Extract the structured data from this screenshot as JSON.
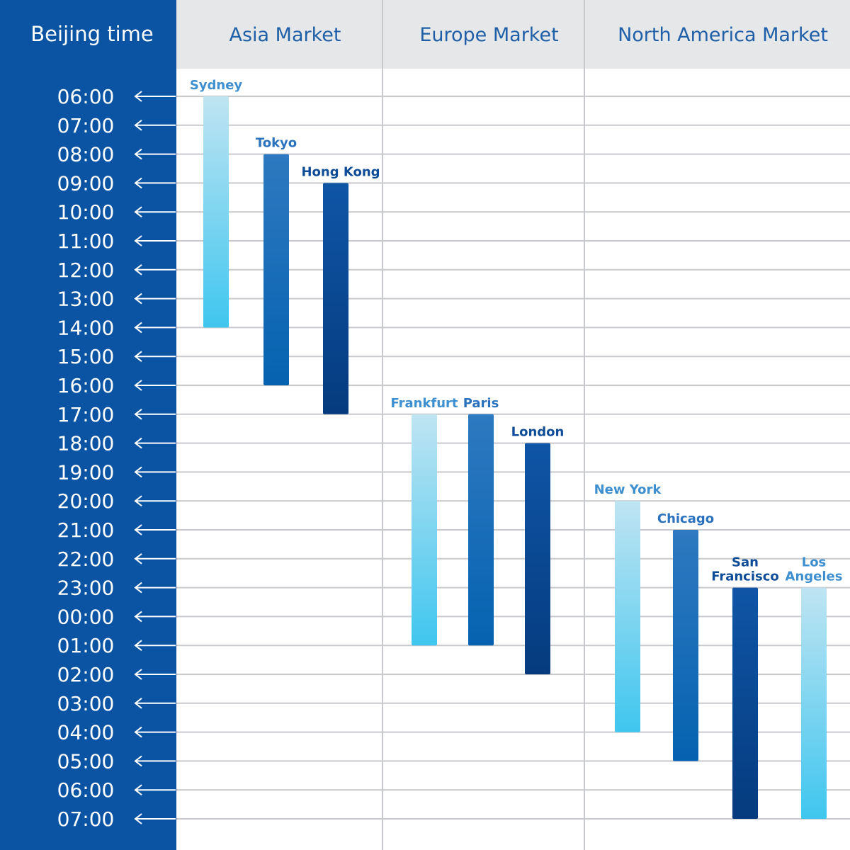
{
  "chart_data": {
    "type": "bar",
    "subtype": "floating-range",
    "axis_title": "Beijing time",
    "markets": [
      {
        "name": "Asia Market",
        "color": "#1e5fa8"
      },
      {
        "name": "Europe Market",
        "color": "#1e5fa8"
      },
      {
        "name": "North America Market",
        "color": "#1e5fa8"
      }
    ],
    "y_ticks": [
      "06:00",
      "07:00",
      "08:00",
      "09:00",
      "10:00",
      "11:00",
      "12:00",
      "13:00",
      "14:00",
      "15:00",
      "16:00",
      "17:00",
      "18:00",
      "19:00",
      "20:00",
      "21:00",
      "22:00",
      "23:00",
      "00:00",
      "01:00",
      "02:00",
      "03:00",
      "04:00",
      "05:00",
      "06:00",
      "07:00"
    ],
    "unit": "hours after 06:00 Beijing time",
    "series": [
      {
        "city": [
          "Sydney"
        ],
        "market": 0,
        "start": 0,
        "end": 8,
        "style": "light"
      },
      {
        "city": [
          "Tokyo"
        ],
        "market": 0,
        "start": 2,
        "end": 10,
        "style": "mid"
      },
      {
        "city": [
          "Hong Kong"
        ],
        "market": 0,
        "start": 3,
        "end": 11,
        "style": "dark"
      },
      {
        "city": [
          "Frankfurt"
        ],
        "market": 1,
        "start": 11,
        "end": 19,
        "style": "light"
      },
      {
        "city": [
          "Paris"
        ],
        "market": 1,
        "start": 11,
        "end": 19,
        "style": "mid"
      },
      {
        "city": [
          "London"
        ],
        "market": 1,
        "start": 12,
        "end": 20,
        "style": "dark"
      },
      {
        "city": [
          "New York"
        ],
        "market": 2,
        "start": 14,
        "end": 22,
        "style": "light"
      },
      {
        "city": [
          "Chicago"
        ],
        "market": 2,
        "start": 15,
        "end": 23,
        "style": "mid"
      },
      {
        "city": [
          "San",
          "Francisco"
        ],
        "market": 2,
        "start": 17,
        "end": 25,
        "style": "dark"
      },
      {
        "city": [
          "Los",
          "Angeles"
        ],
        "market": 2,
        "start": 17,
        "end": 25,
        "style": "light"
      }
    ],
    "colors": {
      "sidebar": "#0b54a4",
      "header_bg": "#e6e7e9",
      "grid": "#c8c9cc",
      "header_text": "#1d5ca6",
      "label_light": "#3d8fd0",
      "label_mid": "#2a72bd",
      "label_dark": "#0e4c97",
      "light_top": "#bfe4f2",
      "light_bottom": "#3fc6ef",
      "mid_top": "#2e79c0",
      "mid_bottom": "#0562b0",
      "dark_top": "#0f55a6",
      "dark_bottom": "#053b7e"
    }
  }
}
